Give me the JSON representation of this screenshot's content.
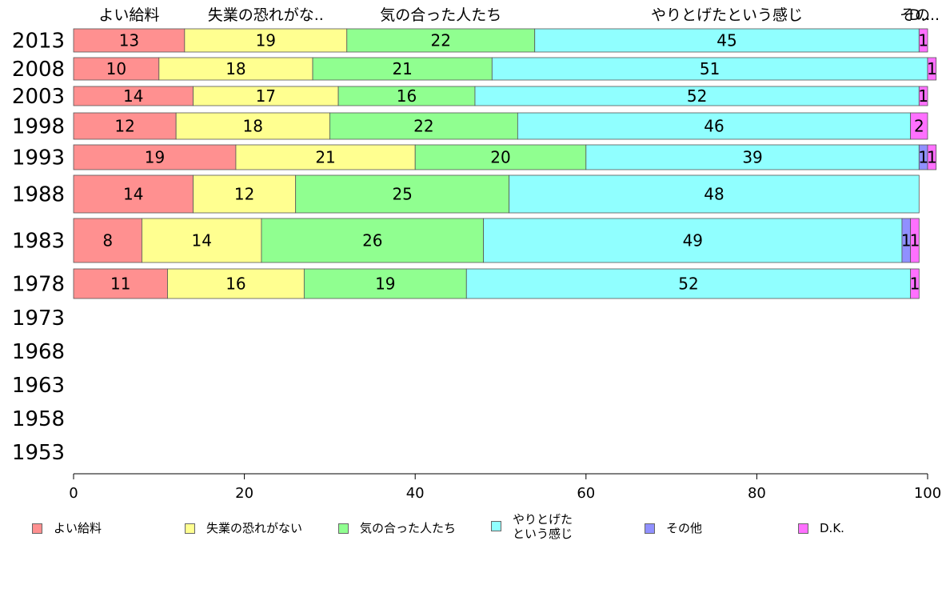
{
  "chart_data": {
    "type": "bar",
    "orientation": "horizontal",
    "stacked": true,
    "title": "",
    "xlabel": "",
    "ylabel": "",
    "xlim": [
      0,
      100
    ],
    "x_ticks": [
      "0",
      "20",
      "40",
      "60",
      "80",
      "100"
    ],
    "categories": [
      "2013",
      "2008",
      "2003",
      "1998",
      "1993",
      "1988",
      "1983",
      "1978",
      "1973",
      "1968",
      "1963",
      "1958",
      "1953"
    ],
    "column_headers": [
      "よい給料",
      "失業の恐れがな..",
      "気の合った人たち",
      "やりとげたという感じ",
      "その..",
      "D.."
    ],
    "series": [
      {
        "name": "よい給料",
        "color": "#ff9090",
        "values": [
          13,
          10,
          14,
          12,
          19,
          14,
          8,
          11,
          null,
          null,
          null,
          null,
          null
        ]
      },
      {
        "name": "失業の恐れがない",
        "color": "#ffff90",
        "values": [
          19,
          18,
          17,
          18,
          21,
          12,
          14,
          16,
          null,
          null,
          null,
          null,
          null
        ]
      },
      {
        "name": "気の合った人たち",
        "color": "#90ff90",
        "values": [
          22,
          21,
          16,
          22,
          20,
          25,
          26,
          19,
          null,
          null,
          null,
          null,
          null
        ]
      },
      {
        "name": "やりとげた\nという感じ",
        "color": "#90ffff",
        "values": [
          45,
          51,
          52,
          46,
          39,
          48,
          49,
          52,
          null,
          null,
          null,
          null,
          null
        ]
      },
      {
        "name": "その他",
        "color": "#9090ff",
        "values": [
          0,
          0,
          0,
          0,
          1,
          0,
          1,
          0,
          null,
          null,
          null,
          null,
          null
        ]
      },
      {
        "name": "D.K.",
        "color": "#ff70ff",
        "values": [
          1,
          1,
          1,
          2,
          1,
          0,
          1,
          1,
          null,
          null,
          null,
          null,
          null
        ]
      }
    ],
    "legend_position": "bottom",
    "grid": false
  }
}
